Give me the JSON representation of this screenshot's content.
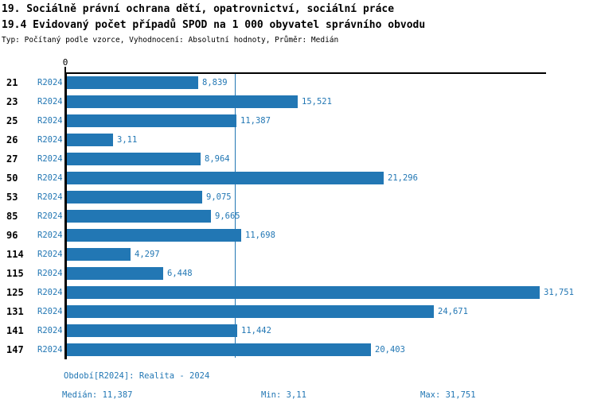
{
  "header": {
    "title_line1": "19. Sociálně právní ochrana dětí, opatrovnictví, sociální práce",
    "title_line2": "19.4 Evidovaný počet případů SPOD na 1 000 obyvatel správního obvodu",
    "subtitle": "Typ: Počítaný podle vzorce, Vyhodnocení: Absolutní hodnoty, Průměr: Medián"
  },
  "chart_data": {
    "type": "bar",
    "orientation": "horizontal",
    "title": "19.4 Evidovaný počet případů SPOD na 1 000 obyvatel správního obvodu",
    "series_label": "R2024",
    "categories": [
      "21",
      "23",
      "25",
      "26",
      "27",
      "50",
      "53",
      "85",
      "96",
      "114",
      "115",
      "125",
      "131",
      "141",
      "147"
    ],
    "values": [
      8.839,
      15.521,
      11.387,
      3.11,
      8.964,
      21.296,
      9.075,
      9.665,
      11.698,
      4.297,
      6.448,
      31.751,
      24.671,
      11.442,
      20.403
    ],
    "value_labels": [
      "8,839",
      "15,521",
      "11,387",
      "3,11",
      "8,964",
      "21,296",
      "9,075",
      "9,665",
      "11,698",
      "4,297",
      "6,448",
      "31,751",
      "24,671",
      "11,442",
      "20,403"
    ],
    "xlabel": "",
    "ylabel": "",
    "xlim": [
      0,
      32.3
    ],
    "x_tick_labels": [
      "0"
    ],
    "zero_tick_label": "0",
    "median_line_value": 11.387,
    "grid": false,
    "legend_position": "none",
    "bar_color": "#2277b4"
  },
  "footer": {
    "period": "Období[R2024]: Realita - 2024",
    "median": "Medián: 11,387",
    "min": "Min: 3,11",
    "max": "Max: 31,751"
  },
  "colors": {
    "accent": "#2277b4",
    "axis": "#000000",
    "background": "#ffffff",
    "title_text": "#000000"
  }
}
